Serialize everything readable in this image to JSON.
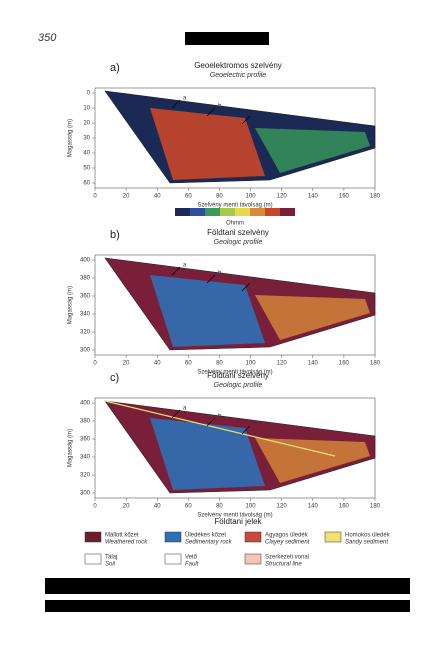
{
  "page_number": "350",
  "panels": [
    {
      "label": "a)",
      "title": "Geoelektromos szelvény",
      "subtitle": "Geoelectric profile",
      "y_axis": "Magasság (m)",
      "x_axis": "Szelvény menti távolság (m)",
      "x_ticks": [
        "0",
        "20",
        "40",
        "60",
        "80",
        "100",
        "120",
        "140",
        "160",
        "180"
      ],
      "y_ticks": [
        "0",
        "10",
        "20",
        "30",
        "40",
        "50",
        "60"
      ],
      "markers": [
        "a",
        "b",
        "c"
      ]
    },
    {
      "label": "b)",
      "title": "Földtani szelvény",
      "subtitle": "Geologic profile",
      "y_axis": "Magasság (m)",
      "x_axis": "Szelvény menti távolság (m)",
      "x_ticks": [
        "0",
        "20",
        "40",
        "60",
        "80",
        "100",
        "120",
        "140",
        "160",
        "180"
      ],
      "y_ticks": [
        "400",
        "380",
        "360",
        "340",
        "320",
        "300"
      ],
      "markers": [
        "a",
        "b",
        "c"
      ]
    },
    {
      "label": "c)",
      "title": "Földtani szelvény",
      "subtitle": "Geologic profile",
      "y_axis": "Magasság (m)",
      "x_axis": "Szelvény menti távolság (m)",
      "x_ticks": [
        "0",
        "20",
        "40",
        "60",
        "80",
        "100",
        "120",
        "140",
        "160",
        "180"
      ],
      "y_ticks": [
        "400",
        "380",
        "360",
        "340",
        "320",
        "300"
      ],
      "markers": [
        "a",
        "b",
        "c"
      ]
    }
  ],
  "colorbar_label": "Ohmm",
  "legend": {
    "title": "Földtani jelek",
    "items": [
      {
        "name": "Mállott kőzet",
        "note": "Weathered rock"
      },
      {
        "name": "Üledékes kőzet",
        "note": "Sedimentary rock"
      },
      {
        "name": "Agyagos üledék",
        "note": "Clayey sediment"
      },
      {
        "name": "Homokos üledék",
        "note": "Sandy sediment"
      },
      {
        "name": "Talaj",
        "note": "Soil"
      },
      {
        "name": "Vető",
        "note": "Fault"
      },
      {
        "name": "Szerkezeti vonal",
        "note": "Structural line"
      }
    ]
  }
}
